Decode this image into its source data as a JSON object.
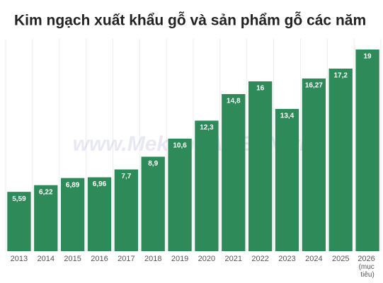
{
  "chart_data": {
    "type": "bar",
    "title": "Kim ngạch xuất khẩu gỗ và sản phẩm gỗ các năm",
    "watermark": "www.MekongASEAN.vn",
    "categories": [
      "2013",
      "2014",
      "2015",
      "2016",
      "2017",
      "2018",
      "2019",
      "2020",
      "2021",
      "2022",
      "2023",
      "2024",
      "2025",
      "2026 (mục tiêu)"
    ],
    "values": [
      5.59,
      6.22,
      6.89,
      6.96,
      7.7,
      8.9,
      10.6,
      12.3,
      14.8,
      16,
      13.4,
      16.27,
      17.2,
      19
    ],
    "value_labels": [
      "5,59",
      "6,22",
      "6,89",
      "6,96",
      "7,7",
      "8,9",
      "10,6",
      "12,3",
      "14,8",
      "16",
      "13,4",
      "16,27",
      "17,2",
      "19"
    ],
    "color": "#2f8a5a"
  }
}
